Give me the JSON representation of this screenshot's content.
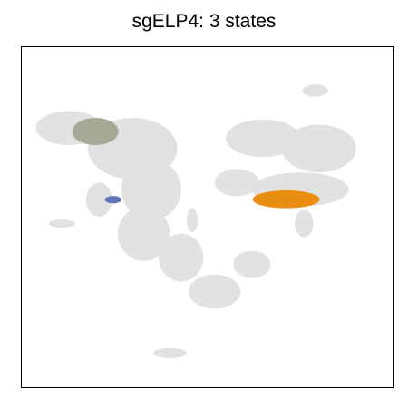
{
  "chart_data": {
    "type": "scatter",
    "title": "sgELP4: 3 states",
    "xlabel": "",
    "ylabel": "",
    "xlim": [
      0,
      1
    ],
    "ylim": [
      0,
      1
    ],
    "grid": false,
    "axis_ticks": false,
    "background": {
      "color": "#e2e2e2",
      "regions": [
        {
          "cx": 0.13,
          "cy": 0.76,
          "rx": 0.09,
          "ry": 0.05
        },
        {
          "cx": 0.3,
          "cy": 0.7,
          "rx": 0.12,
          "ry": 0.09
        },
        {
          "cx": 0.35,
          "cy": 0.58,
          "rx": 0.08,
          "ry": 0.09
        },
        {
          "cx": 0.33,
          "cy": 0.45,
          "rx": 0.07,
          "ry": 0.08
        },
        {
          "cx": 0.43,
          "cy": 0.38,
          "rx": 0.06,
          "ry": 0.07
        },
        {
          "cx": 0.52,
          "cy": 0.28,
          "rx": 0.07,
          "ry": 0.05
        },
        {
          "cx": 0.62,
          "cy": 0.36,
          "rx": 0.05,
          "ry": 0.04
        },
        {
          "cx": 0.21,
          "cy": 0.55,
          "rx": 0.035,
          "ry": 0.05
        },
        {
          "cx": 0.65,
          "cy": 0.73,
          "rx": 0.1,
          "ry": 0.055
        },
        {
          "cx": 0.8,
          "cy": 0.7,
          "rx": 0.1,
          "ry": 0.07
        },
        {
          "cx": 0.75,
          "cy": 0.58,
          "rx": 0.13,
          "ry": 0.05
        },
        {
          "cx": 0.58,
          "cy": 0.6,
          "rx": 0.06,
          "ry": 0.04
        },
        {
          "cx": 0.76,
          "cy": 0.48,
          "rx": 0.025,
          "ry": 0.04
        },
        {
          "cx": 0.46,
          "cy": 0.49,
          "rx": 0.015,
          "ry": 0.035
        },
        {
          "cx": 0.11,
          "cy": 0.48,
          "rx": 0.035,
          "ry": 0.012
        },
        {
          "cx": 0.79,
          "cy": 0.87,
          "rx": 0.035,
          "ry": 0.018
        },
        {
          "cx": 0.4,
          "cy": 0.1,
          "rx": 0.045,
          "ry": 0.015
        }
      ]
    },
    "series": [
      {
        "color": "#a4aa96",
        "cx": 0.2,
        "cy": 0.75,
        "rx": 0.062,
        "ry": 0.04
      },
      {
        "color": "#6273b8",
        "cx": 0.2475,
        "cy": 0.55,
        "rx": 0.022,
        "ry": 0.011
      },
      {
        "color": "#ea8e12",
        "cx": 0.712,
        "cy": 0.551,
        "rx": 0.09,
        "ry": 0.026
      }
    ],
    "frame_color": "#000000"
  }
}
